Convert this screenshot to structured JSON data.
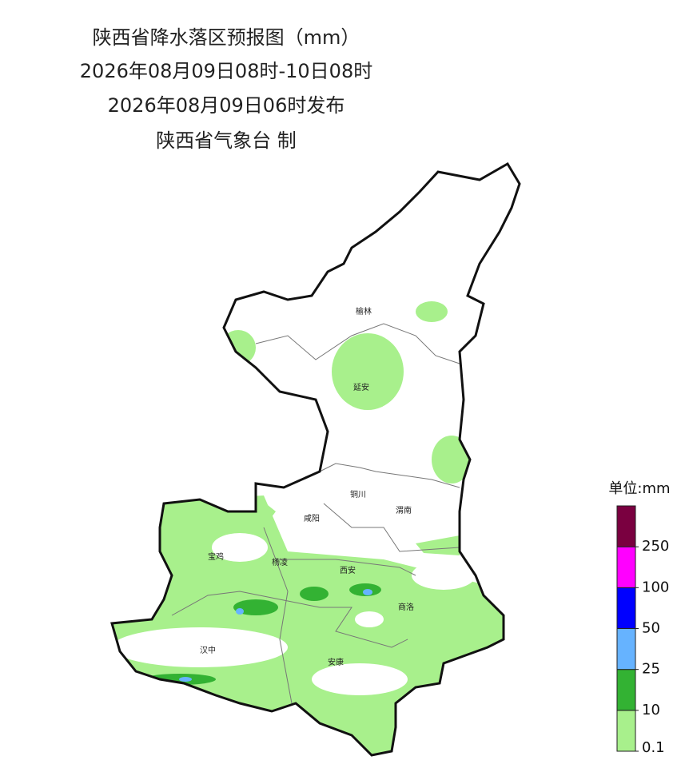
{
  "header": {
    "title": "陕西省降水落区预报图（mm）",
    "period": "2026年08月09日08时-10日08时",
    "issued": "2026年08月09日06时发布",
    "producer": "陕西省气象台 制"
  },
  "map": {
    "cities": [
      "榆林",
      "延安",
      "铜川",
      "咸阳",
      "渭南",
      "宝鸡",
      "杨凌",
      "西安",
      "商洛",
      "汉中",
      "安康"
    ]
  },
  "legend": {
    "title": "单位:mm",
    "ticks": [
      0.1,
      10,
      25,
      50,
      100,
      250
    ],
    "colors": [
      "#a8f08c",
      "#33b233",
      "#66b3ff",
      "#0000ff",
      "#ff00ff",
      "#7a0040"
    ]
  }
}
